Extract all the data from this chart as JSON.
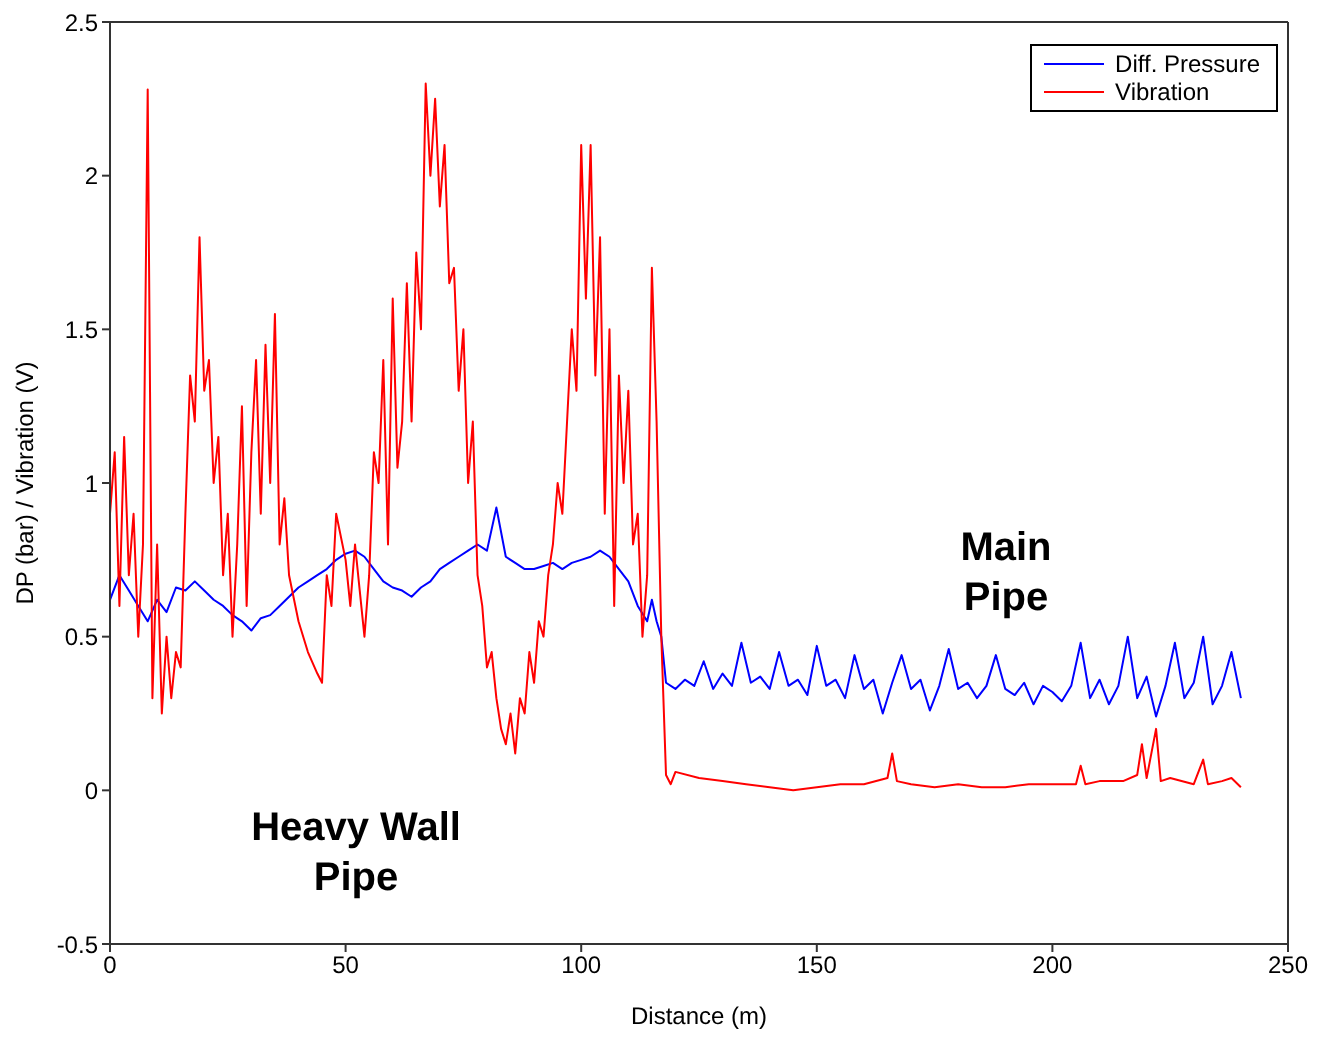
{
  "chart_data": {
    "type": "line",
    "xlabel": "Distance (m)",
    "ylabel": "DP (bar) / Vibration (V)",
    "xlim": [
      0,
      250
    ],
    "xticks": [
      0,
      50,
      100,
      150,
      200,
      250
    ],
    "ylim": [
      -0.5,
      2.5
    ],
    "yticks": [
      -0.5,
      0,
      0.5,
      1,
      1.5,
      2,
      2.5
    ],
    "legend": "top right",
    "marker": "none",
    "line_style": "solid",
    "annotations": [
      "Heavy Wall Pipe",
      "Main Pipe"
    ],
    "series": [
      {
        "name": "Diff. Pressure",
        "color": "#0000ff",
        "x": [
          0,
          2,
          4,
          6,
          8,
          10,
          12,
          14,
          16,
          18,
          20,
          22,
          24,
          26,
          28,
          30,
          32,
          34,
          36,
          38,
          40,
          42,
          44,
          46,
          48,
          50,
          52,
          54,
          56,
          58,
          60,
          62,
          64,
          66,
          68,
          70,
          72,
          74,
          76,
          78,
          80,
          82,
          84,
          86,
          88,
          90,
          92,
          94,
          96,
          98,
          100,
          102,
          104,
          106,
          108,
          110,
          112,
          114,
          115,
          116,
          117,
          118,
          120,
          122,
          124,
          126,
          128,
          130,
          132,
          134,
          136,
          138,
          140,
          142,
          144,
          146,
          148,
          150,
          152,
          154,
          156,
          158,
          160,
          162,
          164,
          166,
          168,
          170,
          172,
          174,
          176,
          178,
          180,
          182,
          184,
          186,
          188,
          190,
          192,
          194,
          196,
          198,
          200,
          202,
          204,
          206,
          208,
          210,
          212,
          214,
          216,
          218,
          220,
          222,
          224,
          226,
          228,
          230,
          232,
          234,
          236,
          238,
          240
        ],
        "values": [
          0.62,
          0.7,
          0.65,
          0.6,
          0.55,
          0.62,
          0.58,
          0.66,
          0.65,
          0.68,
          0.65,
          0.62,
          0.6,
          0.57,
          0.55,
          0.52,
          0.56,
          0.57,
          0.6,
          0.63,
          0.66,
          0.68,
          0.7,
          0.72,
          0.75,
          0.77,
          0.78,
          0.76,
          0.72,
          0.68,
          0.66,
          0.65,
          0.63,
          0.66,
          0.68,
          0.72,
          0.74,
          0.76,
          0.78,
          0.8,
          0.78,
          0.92,
          0.76,
          0.74,
          0.72,
          0.72,
          0.73,
          0.74,
          0.72,
          0.74,
          0.75,
          0.76,
          0.78,
          0.76,
          0.72,
          0.68,
          0.6,
          0.55,
          0.62,
          0.55,
          0.5,
          0.35,
          0.33,
          0.36,
          0.34,
          0.42,
          0.33,
          0.38,
          0.34,
          0.48,
          0.35,
          0.37,
          0.33,
          0.45,
          0.34,
          0.36,
          0.31,
          0.47,
          0.34,
          0.36,
          0.3,
          0.44,
          0.33,
          0.36,
          0.25,
          0.35,
          0.44,
          0.33,
          0.36,
          0.26,
          0.34,
          0.46,
          0.33,
          0.35,
          0.3,
          0.34,
          0.44,
          0.33,
          0.31,
          0.35,
          0.28,
          0.34,
          0.32,
          0.29,
          0.34,
          0.48,
          0.3,
          0.36,
          0.28,
          0.34,
          0.5,
          0.3,
          0.37,
          0.24,
          0.34,
          0.48,
          0.3,
          0.35,
          0.5,
          0.28,
          0.34,
          0.45,
          0.3
        ]
      },
      {
        "name": "Vibration",
        "color": "#ff0000",
        "x": [
          0,
          1,
          2,
          3,
          4,
          5,
          6,
          7,
          8,
          9,
          10,
          11,
          12,
          13,
          14,
          15,
          16,
          17,
          18,
          19,
          20,
          21,
          22,
          23,
          24,
          25,
          26,
          27,
          28,
          29,
          30,
          31,
          32,
          33,
          34,
          35,
          36,
          37,
          38,
          40,
          42,
          44,
          45,
          46,
          47,
          48,
          50,
          51,
          52,
          53,
          54,
          55,
          56,
          57,
          58,
          59,
          60,
          61,
          62,
          63,
          64,
          65,
          66,
          67,
          68,
          69,
          70,
          71,
          72,
          73,
          74,
          75,
          76,
          77,
          78,
          79,
          80,
          81,
          82,
          83,
          84,
          85,
          86,
          87,
          88,
          89,
          90,
          91,
          92,
          93,
          94,
          95,
          96,
          97,
          98,
          99,
          100,
          101,
          102,
          103,
          104,
          105,
          106,
          107,
          108,
          109,
          110,
          111,
          112,
          113,
          114,
          115,
          116,
          117,
          118,
          119,
          120,
          125,
          130,
          135,
          140,
          145,
          150,
          155,
          160,
          165,
          166,
          167,
          170,
          175,
          180,
          185,
          190,
          195,
          200,
          205,
          206,
          207,
          210,
          215,
          218,
          219,
          220,
          222,
          223,
          225,
          230,
          232,
          233,
          236,
          238,
          240
        ],
        "values": [
          0.9,
          1.1,
          0.6,
          1.15,
          0.7,
          0.9,
          0.5,
          0.8,
          2.28,
          0.3,
          0.8,
          0.25,
          0.5,
          0.3,
          0.45,
          0.4,
          0.9,
          1.35,
          1.2,
          1.8,
          1.3,
          1.4,
          1.0,
          1.15,
          0.7,
          0.9,
          0.5,
          0.8,
          1.25,
          0.6,
          1.1,
          1.4,
          0.9,
          1.45,
          1.0,
          1.55,
          0.8,
          0.95,
          0.7,
          0.55,
          0.45,
          0.38,
          0.35,
          0.7,
          0.6,
          0.9,
          0.75,
          0.6,
          0.8,
          0.65,
          0.5,
          0.7,
          1.1,
          1.0,
          1.4,
          0.8,
          1.6,
          1.05,
          1.2,
          1.65,
          1.2,
          1.75,
          1.5,
          2.3,
          2.0,
          2.25,
          1.9,
          2.1,
          1.65,
          1.7,
          1.3,
          1.5,
          1.0,
          1.2,
          0.7,
          0.6,
          0.4,
          0.45,
          0.3,
          0.2,
          0.15,
          0.25,
          0.12,
          0.3,
          0.25,
          0.45,
          0.35,
          0.55,
          0.5,
          0.7,
          0.8,
          1.0,
          0.9,
          1.2,
          1.5,
          1.3,
          2.1,
          1.6,
          2.1,
          1.35,
          1.8,
          0.9,
          1.5,
          0.6,
          1.35,
          1.0,
          1.3,
          0.8,
          0.9,
          0.5,
          0.7,
          1.7,
          1.2,
          0.5,
          0.05,
          0.02,
          0.06,
          0.04,
          0.03,
          0.02,
          0.01,
          0.0,
          0.01,
          0.02,
          0.02,
          0.04,
          0.12,
          0.03,
          0.02,
          0.01,
          0.02,
          0.01,
          0.01,
          0.02,
          0.02,
          0.02,
          0.08,
          0.02,
          0.03,
          0.03,
          0.05,
          0.15,
          0.04,
          0.2,
          0.03,
          0.04,
          0.02,
          0.1,
          0.02,
          0.03,
          0.04,
          0.01
        ]
      }
    ]
  }
}
